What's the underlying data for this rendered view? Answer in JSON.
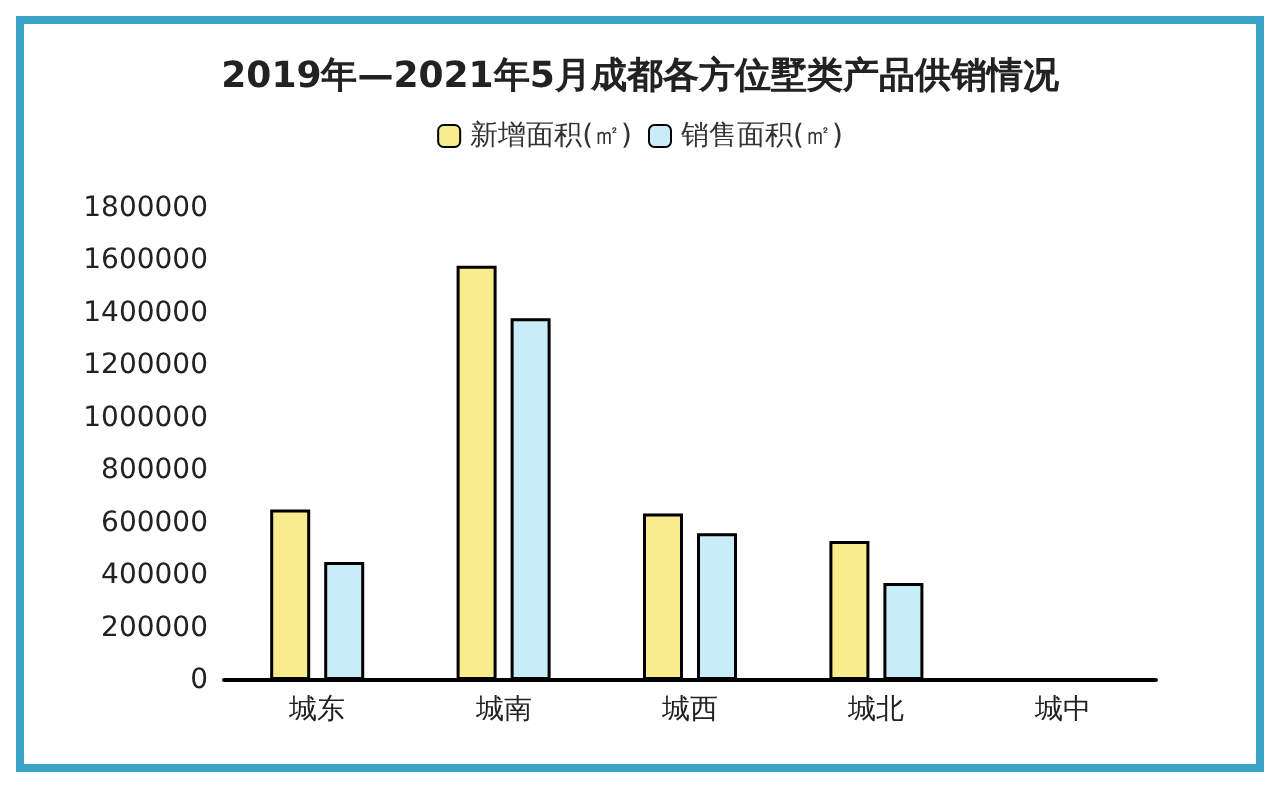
{
  "chart_data": {
    "type": "bar",
    "title": "2019年—2021年5月成都各方位墅类产品供销情况",
    "categories": [
      "城东",
      "城南",
      "城西",
      "城北",
      "城中"
    ],
    "series": [
      {
        "name": "新增面积(㎡)",
        "color": "#f9ec8c",
        "values": [
          650000,
          1580000,
          635000,
          530000,
          null
        ]
      },
      {
        "name": "销售面积(㎡)",
        "color": "#c8ecf8",
        "values": [
          450000,
          1380000,
          560000,
          370000,
          null
        ]
      }
    ],
    "ylim": [
      0,
      1800000
    ],
    "yticks": [
      0,
      200000,
      400000,
      600000,
      800000,
      1000000,
      1200000,
      1400000,
      1600000,
      1800000
    ],
    "grid": false,
    "legend": "top"
  }
}
